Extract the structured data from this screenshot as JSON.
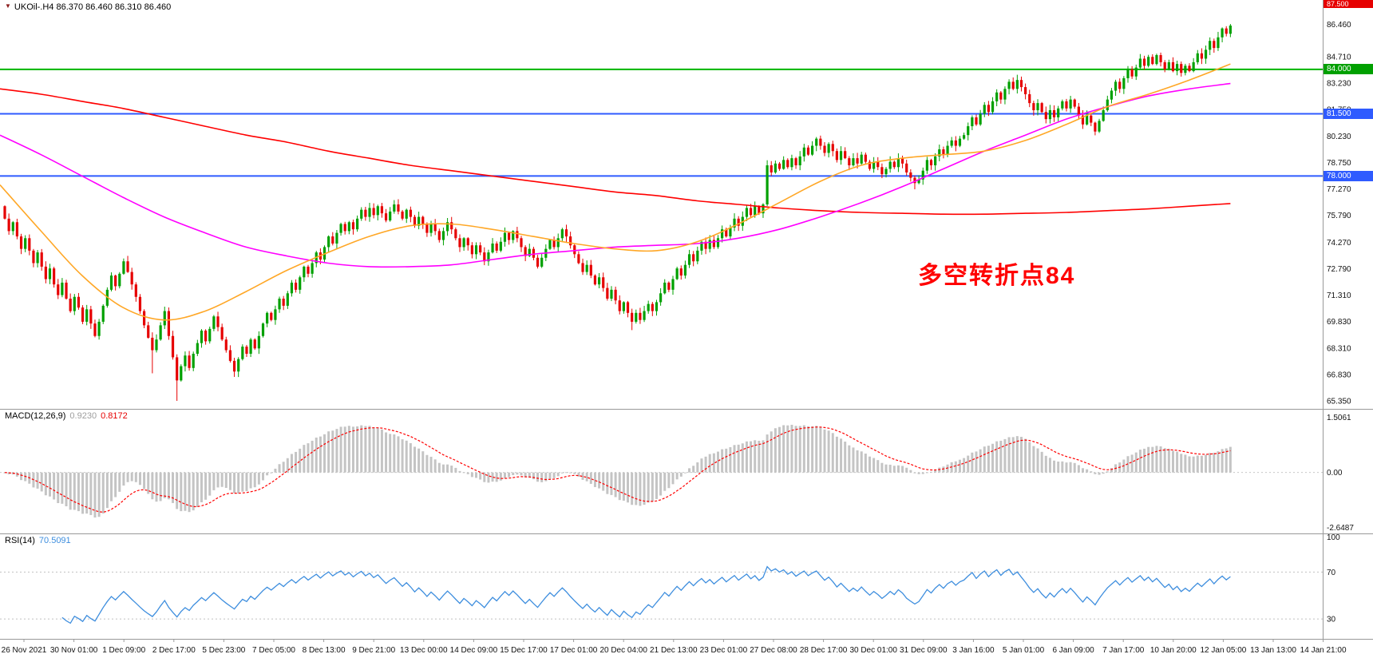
{
  "header": {
    "symbol": "UKOil-.H4",
    "timeframe": "H4",
    "open": "86.370",
    "high": "86.460",
    "low": "86.310",
    "close": "86.460",
    "title_text": "UKOil-.H4 86.370 86.460 86.310 86.460"
  },
  "colors": {
    "background": "#ffffff",
    "up_candle": "#00a000",
    "down_candle": "#e60000",
    "ma_slow": "#ff0000",
    "ma_mid": "#ff00ff",
    "ma_fast": "#ffa726",
    "hline_green": "#00b400",
    "hline_blue": "#2f5bff",
    "macd_histogram": "#c4c4c4",
    "macd_signal": "#ff0000",
    "rsi_line": "#3e8ede",
    "annotation": "#ff0000",
    "axis_text": "#111111",
    "panel_border": "#999999"
  },
  "annotation": {
    "text": "多空转折点84"
  },
  "price_axis": {
    "ticks": [
      "84.710",
      "83.230",
      "81.750",
      "80.230",
      "78.750",
      "77.270",
      "75.790",
      "74.270",
      "72.790",
      "71.310",
      "69.830",
      "68.310",
      "66.830",
      "65.350"
    ],
    "current_price": "86.460",
    "top_box": "87.500",
    "level_boxes": [
      {
        "value": "84.000",
        "color": "#00a000"
      },
      {
        "value": "81.500",
        "color": "#2f5bff"
      },
      {
        "value": "78.000",
        "color": "#2f5bff"
      }
    ]
  },
  "hlines": [
    {
      "price": 84.0,
      "color": "#00b400",
      "width": 2
    },
    {
      "price": 81.5,
      "color": "#2f5bff",
      "width": 2
    },
    {
      "price": 78.0,
      "color": "#2f5bff",
      "width": 2
    }
  ],
  "indicators": {
    "macd": {
      "label": "MACD(12,26,9)",
      "value_main": "0.9230",
      "value_signal": "0.8172",
      "fast": 12,
      "slow": 26,
      "signal": 9,
      "axis_labels": [
        "1.5061",
        "0.00",
        "-2.6487"
      ]
    },
    "rsi": {
      "label": "RSI(14)",
      "value": "70.5091",
      "period": 14,
      "levels": [
        30,
        70
      ],
      "axis_labels": [
        "100",
        "70",
        "30"
      ]
    }
  },
  "time_axis": {
    "labels": [
      "26 Nov 2021",
      "30 Nov 01:00",
      "1 Dec 09:00",
      "2 Dec 17:00",
      "5 Dec 23:00",
      "7 Dec 05:00",
      "8 Dec 13:00",
      "9 Dec 21:00",
      "13 Dec 00:00",
      "14 Dec 09:00",
      "15 Dec 17:00",
      "17 Dec 01:00",
      "20 Dec 04:00",
      "21 Dec 13:00",
      "23 Dec 01:00",
      "27 Dec 08:00",
      "28 Dec 17:00",
      "30 Dec 01:00",
      "31 Dec 09:00",
      "3 Jan 16:00",
      "5 Jan 01:00",
      "6 Jan 09:00",
      "7 Jan 17:00",
      "10 Jan 20:00",
      "12 Jan 05:00",
      "13 Jan 13:00",
      "14 Jan 21:00"
    ]
  },
  "chart_data": {
    "type": "candlestick",
    "symbol": "UKOil-.H4",
    "timeframe": "H4",
    "title": "UKOil-.H4 86.370 86.460 86.310 86.460",
    "price_range": [
      64.9,
      87.9
    ],
    "horizontal_levels": [
      84.0,
      81.5,
      78.0
    ],
    "first_open": 76.3,
    "closes": [
      75.6,
      74.9,
      75.4,
      74.6,
      73.9,
      74.5,
      73.8,
      73.1,
      73.7,
      72.9,
      72.2,
      72.8,
      71.9,
      71.3,
      72.0,
      71.1,
      70.4,
      71.2,
      70.6,
      69.8,
      70.5,
      69.7,
      69.0,
      69.8,
      70.7,
      71.6,
      72.4,
      71.8,
      72.5,
      73.2,
      72.6,
      71.9,
      71.2,
      70.4,
      69.6,
      68.9,
      68.2,
      68.8,
      69.6,
      70.4,
      69.0,
      67.8,
      66.5,
      67.3,
      67.9,
      67.2,
      68.0,
      68.6,
      69.3,
      68.7,
      69.4,
      70.1,
      69.5,
      68.8,
      68.2,
      67.6,
      67.0,
      67.7,
      68.4,
      68.0,
      68.8,
      68.3,
      69.0,
      69.7,
      70.3,
      69.9,
      70.5,
      71.1,
      70.7,
      71.4,
      72.0,
      71.6,
      72.3,
      72.9,
      72.5,
      73.1,
      73.7,
      73.3,
      74.0,
      74.6,
      74.2,
      74.8,
      75.3,
      74.9,
      75.4,
      75.0,
      75.6,
      76.1,
      75.7,
      76.2,
      75.8,
      76.3,
      75.9,
      75.5,
      76.0,
      76.4,
      76.0,
      75.6,
      76.1,
      75.7,
      75.2,
      75.7,
      75.3,
      74.8,
      75.3,
      74.9,
      74.4,
      74.9,
      75.4,
      75.0,
      74.5,
      74.0,
      74.5,
      74.1,
      73.6,
      74.1,
      73.7,
      73.2,
      73.7,
      74.2,
      73.8,
      74.3,
      74.8,
      74.4,
      74.9,
      74.5,
      74.0,
      73.5,
      73.9,
      73.4,
      72.9,
      73.4,
      73.9,
      74.4,
      74.0,
      74.5,
      75.0,
      74.6,
      74.1,
      73.6,
      73.1,
      72.6,
      73.0,
      72.4,
      71.9,
      72.3,
      71.7,
      71.1,
      71.6,
      71.0,
      70.4,
      70.9,
      70.3,
      69.8,
      70.3,
      69.9,
      70.4,
      70.8,
      70.4,
      70.9,
      71.4,
      72.0,
      71.6,
      72.2,
      72.8,
      72.4,
      73.0,
      73.6,
      73.2,
      73.8,
      74.3,
      73.9,
      74.4,
      74.0,
      74.5,
      75.0,
      74.6,
      75.1,
      75.6,
      75.2,
      75.7,
      76.2,
      75.8,
      76.3,
      75.9,
      76.4,
      78.6,
      78.2,
      78.7,
      78.4,
      78.9,
      78.5,
      79.0,
      78.6,
      79.1,
      79.6,
      79.2,
      79.7,
      80.1,
      79.7,
      79.3,
      79.8,
      79.4,
      78.9,
      79.4,
      79.0,
      78.6,
      79.0,
      78.7,
      79.2,
      78.8,
      78.4,
      78.8,
      78.5,
      78.1,
      78.4,
      78.8,
      78.5,
      79.0,
      78.7,
      78.2,
      77.9,
      77.6,
      77.8,
      78.3,
      78.9,
      78.6,
      79.1,
      79.5,
      79.2,
      79.7,
      80.0,
      79.7,
      80.1,
      80.3,
      80.8,
      81.3,
      80.9,
      81.5,
      82.0,
      81.6,
      82.2,
      82.7,
      82.3,
      82.9,
      83.3,
      82.9,
      83.4,
      83.0,
      82.6,
      82.1,
      81.7,
      82.1,
      81.6,
      81.2,
      81.7,
      81.3,
      81.8,
      82.2,
      81.8,
      82.3,
      81.9,
      81.4,
      80.9,
      81.4,
      81.0,
      80.5,
      81.1,
      81.7,
      82.3,
      82.8,
      83.3,
      82.9,
      83.5,
      84.0,
      83.6,
      84.1,
      84.6,
      84.2,
      84.7,
      84.3,
      84.8,
      84.4,
      84.0,
      84.4,
      83.9,
      84.3,
      83.8,
      84.2,
      83.9,
      84.4,
      84.9,
      84.6,
      85.1,
      85.6,
      85.2,
      85.8,
      86.3,
      86.0,
      86.46
    ],
    "spike_lows": [
      {
        "i": 36,
        "low": 66.9
      },
      {
        "i": 42,
        "low": 65.35
      },
      {
        "i": 153,
        "low": 69.33
      },
      {
        "i": 222,
        "low": 77.25
      }
    ],
    "spike_highs": [
      {
        "i": 299,
        "high": 86.55
      }
    ],
    "moving_averages": [
      {
        "name": "ma-slow",
        "color": "#ff0000",
        "values": [
          82.9,
          82.6,
          82.2,
          81.8,
          81.3,
          80.8,
          80.3,
          79.9,
          79.4,
          79.0,
          78.6,
          78.3,
          78.0,
          77.7,
          77.4,
          77.1,
          76.9,
          76.6,
          76.4,
          76.2,
          76.05,
          75.95,
          75.9,
          75.85,
          75.85,
          75.9,
          75.95,
          76.05,
          76.15,
          76.3,
          76.45
        ]
      },
      {
        "name": "ma-mid",
        "color": "#ff00ff",
        "values": [
          80.3,
          79.2,
          78.0,
          76.8,
          75.7,
          74.8,
          74.0,
          73.5,
          73.1,
          72.9,
          72.9,
          73.0,
          73.3,
          73.6,
          73.8,
          74.0,
          74.1,
          74.2,
          74.5,
          75.0,
          75.7,
          76.5,
          77.4,
          78.4,
          79.4,
          80.3,
          81.2,
          81.9,
          82.5,
          82.9,
          83.2
        ]
      },
      {
        "name": "ma-fast",
        "color": "#ffa726",
        "values": [
          77.5,
          74.9,
          72.4,
          70.6,
          69.9,
          70.4,
          71.5,
          72.7,
          73.7,
          74.6,
          75.2,
          75.3,
          75.0,
          74.6,
          74.2,
          73.9,
          73.8,
          74.3,
          75.3,
          76.5,
          77.7,
          78.6,
          79.0,
          79.2,
          79.4,
          80.0,
          80.9,
          81.9,
          82.6,
          83.4,
          84.3
        ]
      }
    ]
  }
}
